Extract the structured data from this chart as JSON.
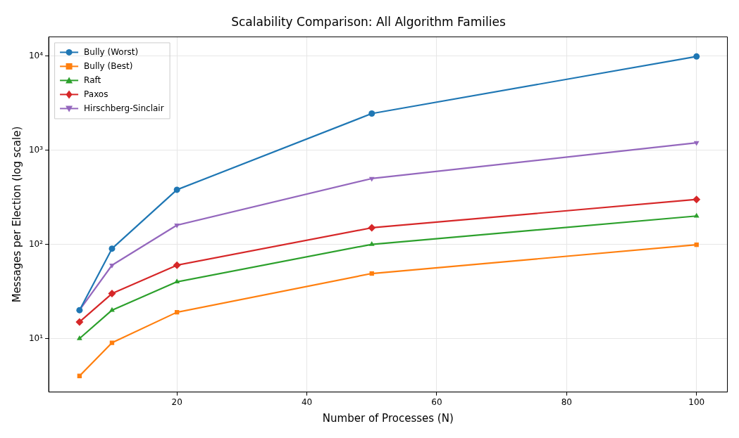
{
  "chart_data": {
    "type": "line",
    "title": "Scalability Comparison: All Algorithm Families",
    "xlabel": "Number of Processes (N)",
    "ylabel": "Messages per Election (log scale)",
    "x": [
      5,
      10,
      20,
      50,
      100
    ],
    "series": [
      {
        "name": "Bully (Worst)",
        "color": "#1f77b4",
        "marker": "circle",
        "values": [
          20,
          90,
          380,
          2450,
          9900
        ]
      },
      {
        "name": "Bully (Best)",
        "color": "#ff7f0e",
        "marker": "square",
        "values": [
          4,
          9,
          19,
          49,
          99
        ]
      },
      {
        "name": "Raft",
        "color": "#2ca02c",
        "marker": "triangle",
        "values": [
          10,
          20,
          40,
          100,
          200
        ]
      },
      {
        "name": "Paxos",
        "color": "#d62728",
        "marker": "diamond",
        "values": [
          15,
          30,
          60,
          150,
          300
        ]
      },
      {
        "name": "Hirschberg-Sinclair",
        "color": "#9467bd",
        "marker": "triangle-down",
        "values": [
          20,
          60,
          160,
          500,
          1200
        ]
      }
    ],
    "log": "y",
    "xlim": [
      0.25,
      104.75
    ],
    "ylim": [
      2.7,
      16000
    ],
    "xticks": [
      20,
      40,
      60,
      80,
      100
    ],
    "yticks": [
      {
        "value": 10,
        "label": "10¹"
      },
      {
        "value": 100,
        "label": "10²"
      },
      {
        "value": 1000,
        "label": "10³"
      },
      {
        "value": 10000,
        "label": "10⁴"
      }
    ],
    "grid": true,
    "legend": "top left",
    "line_style": "solid"
  }
}
